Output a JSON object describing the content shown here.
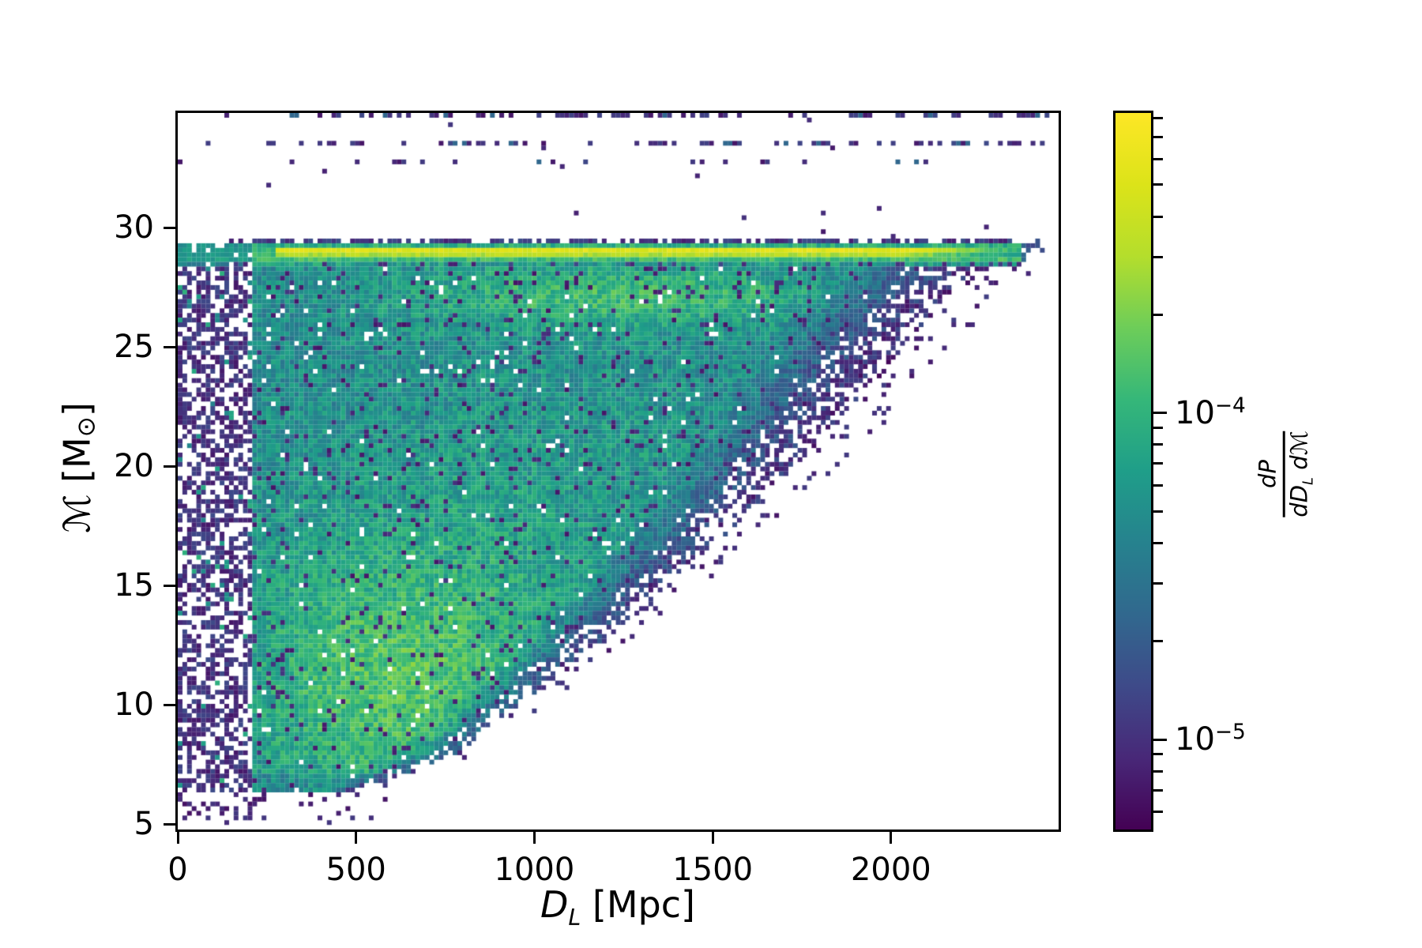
{
  "figure": {
    "background": "#ffffff",
    "axis_color": "#000000"
  },
  "chart_data": {
    "type": "heatmap",
    "title": "",
    "x": {
      "label_main": "D",
      "label_sub": "L",
      "label_unit": " [Mpc]",
      "lim": [
        0,
        2470
      ],
      "ticks": [
        0,
        500,
        1000,
        1500,
        2000
      ]
    },
    "y": {
      "label_pre": "ℳ [M",
      "label_sub": "⊙",
      "label_post": "]",
      "lim": [
        4.8,
        34.83
      ],
      "ticks": [
        5,
        10,
        15,
        20,
        25,
        30
      ]
    },
    "grid": false,
    "colorbar": {
      "scale": "log",
      "vmin": 5.3e-06,
      "vmax": 0.00083,
      "label_num": "dP",
      "label_den_pre": "dD",
      "label_den_sub": "L",
      "label_den_post": " dℳ",
      "ticks": [
        {
          "v": 1e-05,
          "base": "10",
          "exp": "−5"
        },
        {
          "v": 0.0001,
          "base": "10",
          "exp": "−4"
        }
      ]
    },
    "colormap": "viridis",
    "colormap_stops": [
      [
        0.0,
        "#440154"
      ],
      [
        0.1,
        "#482878"
      ],
      [
        0.2,
        "#3e4a89"
      ],
      [
        0.3,
        "#31688e"
      ],
      [
        0.4,
        "#26828e"
      ],
      [
        0.5,
        "#1f9e89"
      ],
      [
        0.6,
        "#35b779"
      ],
      [
        0.7,
        "#6dcd59"
      ],
      [
        0.8,
        "#b4de2c"
      ],
      [
        0.9,
        "#dce319"
      ],
      [
        1.0,
        "#fde725"
      ]
    ],
    "render_model": {
      "cols": 189,
      "rows": 154,
      "sparse_column_dmax": 215,
      "base_t": 0.42,
      "noise_amp": 0.2,
      "speck_p": 0.07,
      "hole_p": 0.025,
      "blobs": [
        {
          "d": 620,
          "m": 10.8,
          "sd": 460,
          "sm": 5.8,
          "a": 0.22
        },
        {
          "d": 1250,
          "m": 27.2,
          "sd": 640,
          "sm": 1.4,
          "a": 0.18
        },
        {
          "d": 1050,
          "m": 19.0,
          "sd": 780,
          "sm": 7.0,
          "a": 0.07
        }
      ],
      "detection_edge": [
        [
          5.8,
          380
        ],
        [
          6.5,
          520
        ],
        [
          7,
          620
        ],
        [
          8,
          780
        ],
        [
          9,
          880
        ],
        [
          10,
          960
        ],
        [
          12,
          1130
        ],
        [
          14,
          1300
        ],
        [
          16,
          1450
        ],
        [
          18,
          1600
        ],
        [
          20,
          1730
        ],
        [
          22,
          1860
        ],
        [
          24,
          1980
        ],
        [
          26,
          2090
        ],
        [
          27,
          2150
        ],
        [
          28,
          2250
        ],
        [
          29,
          2350
        ],
        [
          29.6,
          2380
        ],
        [
          35,
          2550
        ]
      ],
      "band_rows": [
        {
          "lo": 29.4,
          "hi": 29.57,
          "type": "dash",
          "p": 0.72
        },
        {
          "lo": 29.19,
          "hi": 29.4,
          "type": "solid",
          "t": 0.56,
          "jit": 0.08
        },
        {
          "lo": 28.99,
          "hi": 29.19,
          "type": "core",
          "t": 0.92,
          "jit": 0.05
        },
        {
          "lo": 28.8,
          "hi": 28.99,
          "type": "core",
          "t": 0.8,
          "jit": 0.05
        },
        {
          "lo": 28.6,
          "hi": 28.8,
          "type": "solid",
          "t": 0.62,
          "jit": 0.07
        },
        {
          "lo": 28.43,
          "hi": 28.6,
          "type": "solid",
          "t": 0.5,
          "jit": 0.1,
          "speck": 0.15
        }
      ],
      "top_rows": [
        {
          "m": 34.73,
          "p": 0.5,
          "left_cut": 360
        },
        {
          "m": 33.5,
          "p": 0.42,
          "left_cut": 330
        },
        {
          "m": 32.72,
          "p": 0.18,
          "left_cut": 300
        }
      ],
      "bottom_scatter": {
        "m_max": 6.3,
        "p_near": 0.22,
        "d_fade": 430
      }
    }
  }
}
